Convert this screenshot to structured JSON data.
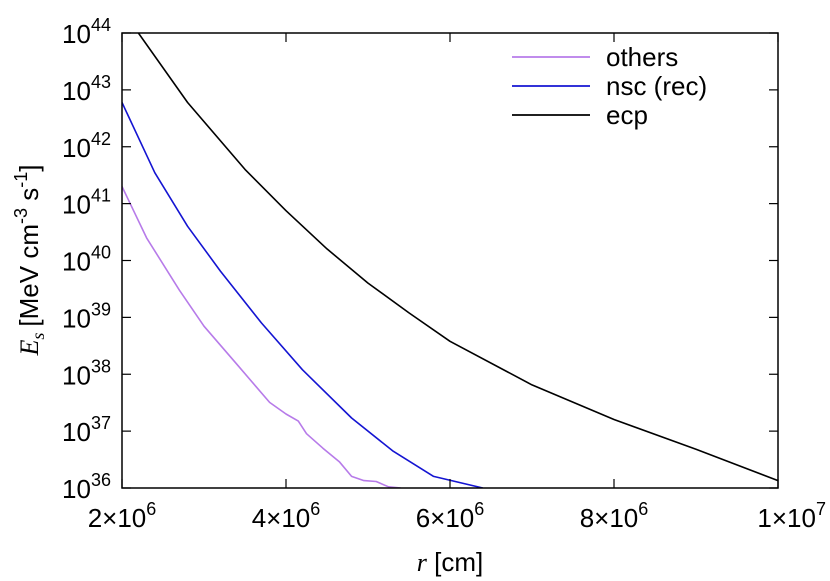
{
  "chart_data": {
    "type": "line",
    "x_scale": "linear",
    "y_scale": "log",
    "xlim": [
      2000000,
      10000000
    ],
    "ylim": [
      1e+36,
      1e+44
    ],
    "grid": false,
    "legend_position": "top-right",
    "xlabel": {
      "italic": "r",
      "rest": " [cm]"
    },
    "ylabel": {
      "italic_main": "E",
      "italic_sub": "s",
      "units": "[MeV cm",
      "exp1": "-3",
      "mid": " s",
      "exp2": "-1",
      "close": "]"
    },
    "x_ticks": [
      {
        "value": 2000000,
        "mantissa": "2×10",
        "exp": "6"
      },
      {
        "value": 4000000,
        "mantissa": "4×10",
        "exp": "6"
      },
      {
        "value": 6000000,
        "mantissa": "6×10",
        "exp": "6"
      },
      {
        "value": 8000000,
        "mantissa": "8×10",
        "exp": "6"
      },
      {
        "value": 10000000,
        "mantissa": "1×10",
        "exp": "7"
      }
    ],
    "y_ticks": [
      {
        "log": 36,
        "base": "10",
        "exp": "36"
      },
      {
        "log": 37,
        "base": "10",
        "exp": "37"
      },
      {
        "log": 38,
        "base": "10",
        "exp": "38"
      },
      {
        "log": 39,
        "base": "10",
        "exp": "39"
      },
      {
        "log": 40,
        "base": "10",
        "exp": "40"
      },
      {
        "log": 41,
        "base": "10",
        "exp": "41"
      },
      {
        "log": 42,
        "base": "10",
        "exp": "42"
      },
      {
        "log": 43,
        "base": "10",
        "exp": "43"
      },
      {
        "log": 44,
        "base": "10",
        "exp": "44"
      }
    ],
    "series": [
      {
        "name": "others",
        "color": "#b77be9",
        "points": [
          [
            2000000,
            2e+41
          ],
          [
            2300000,
            2.5e+40
          ],
          [
            2700000,
            3e+39
          ],
          [
            3000000,
            7e+38
          ],
          [
            3400000,
            1.5e+38
          ],
          [
            3800000,
            3.2e+37
          ],
          [
            4000000,
            2e+37
          ],
          [
            4150000,
            1.5e+37
          ],
          [
            4250000,
            9e+36
          ],
          [
            4450000,
            5e+36
          ],
          [
            4650000,
            2.9e+36
          ],
          [
            4800000,
            1.6e+36
          ],
          [
            4950000,
            1.35e+36
          ],
          [
            5100000,
            1.3e+36
          ],
          [
            5250000,
            1.05e+36
          ],
          [
            5400000,
            1e+36
          ]
        ]
      },
      {
        "name": "nsc (rec)",
        "color": "#1414d2",
        "points": [
          [
            2000000,
            6e+42
          ],
          [
            2400000,
            3.5e+41
          ],
          [
            2800000,
            4e+40
          ],
          [
            3200000,
            6.5e+39
          ],
          [
            3700000,
            8e+38
          ],
          [
            4200000,
            1.2e+38
          ],
          [
            4800000,
            1.7e+37
          ],
          [
            5300000,
            4.5e+36
          ],
          [
            5800000,
            1.6e+36
          ],
          [
            6400000,
            1e+36
          ]
        ]
      },
      {
        "name": "ecp",
        "color": "#000000",
        "points": [
          [
            2200000,
            1e+44
          ],
          [
            2800000,
            6e+42
          ],
          [
            3500000,
            4e+41
          ],
          [
            4000000,
            7.5e+40
          ],
          [
            4500000,
            1.6e+40
          ],
          [
            5000000,
            4e+39
          ],
          [
            5500000,
            1.2e+39
          ],
          [
            6000000,
            3.8e+38
          ],
          [
            7000000,
            6.5e+37
          ],
          [
            8000000,
            1.6e+37
          ],
          [
            9000000,
            4.8e+36
          ],
          [
            10000000,
            1.35e+36
          ]
        ]
      }
    ]
  }
}
